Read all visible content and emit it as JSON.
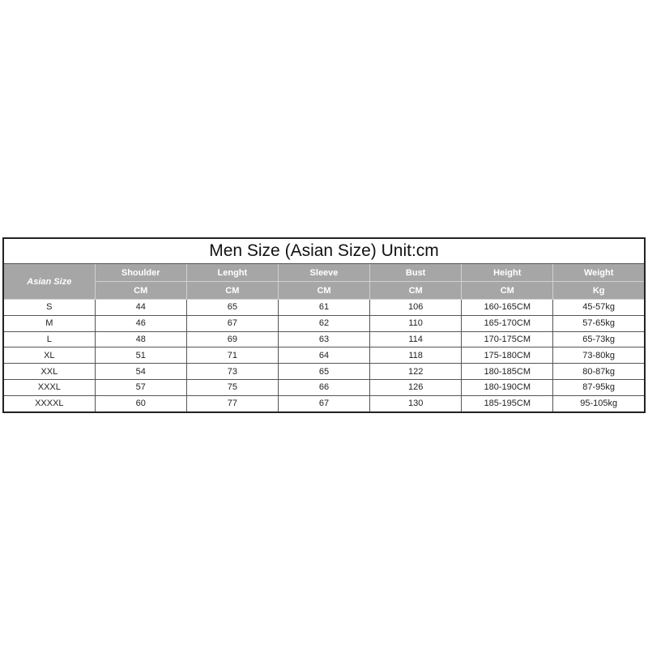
{
  "title": "Men Size (Asian Size) Unit:cm",
  "header": {
    "size": "Asian Size",
    "columns": [
      {
        "name": "Shoulder",
        "unit": "CM"
      },
      {
        "name": "Lenght",
        "unit": "CM"
      },
      {
        "name": "Sleeve",
        "unit": "CM"
      },
      {
        "name": "Bust",
        "unit": "CM"
      },
      {
        "name": "Height",
        "unit": "CM"
      },
      {
        "name": "Weight",
        "unit": "Kg"
      }
    ]
  },
  "rows": [
    [
      "S",
      "44",
      "65",
      "61",
      "106",
      "160-165CM",
      "45-57kg"
    ],
    [
      "M",
      "46",
      "67",
      "62",
      "110",
      "165-170CM",
      "57-65kg"
    ],
    [
      "L",
      "48",
      "69",
      "63",
      "114",
      "170-175CM",
      "65-73kg"
    ],
    [
      "XL",
      "51",
      "71",
      "64",
      "118",
      "175-180CM",
      "73-80kg"
    ],
    [
      "XXL",
      "54",
      "73",
      "65",
      "122",
      "180-185CM",
      "80-87kg"
    ],
    [
      "XXXL",
      "57",
      "75",
      "66",
      "126",
      "180-190CM",
      "87-95kg"
    ],
    [
      "XXXXL",
      "60",
      "77",
      "67",
      "130",
      "185-195CM",
      "95-105kg"
    ]
  ]
}
